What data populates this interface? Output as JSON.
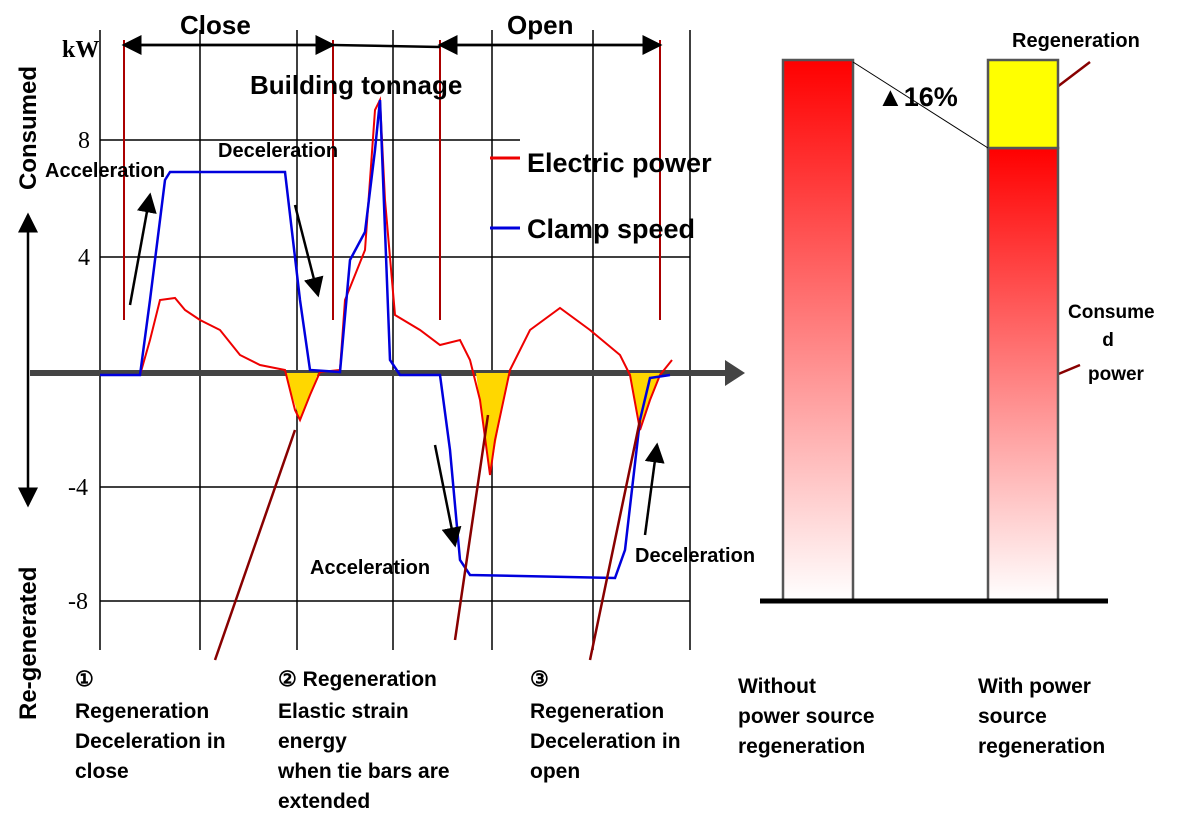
{
  "axis": {
    "unit": "kW",
    "ticks": [
      "8",
      "4",
      "-4",
      "-8"
    ],
    "top_label": "Consumed",
    "bottom_label": "Re-generated"
  },
  "phases": {
    "close": "Close",
    "open": "Open",
    "tonnage": "Building tonnage"
  },
  "legend": {
    "power": "Electric power",
    "speed": "Clamp speed"
  },
  "annotations": [
    "Acceleration",
    "Deceleration",
    "Acceleration",
    "Deceleration"
  ],
  "notes": [
    [
      "①",
      "Regeneration",
      "Deceleration in",
      "close"
    ],
    [
      "② Regeneration",
      "Elastic strain",
      "energy",
      "when tie bars are",
      "extended"
    ],
    [
      "③",
      "Regeneration",
      "Deceleration in",
      "open"
    ]
  ],
  "bars": {
    "change": "▲16%",
    "regeneration": "Regeneration",
    "consumed": [
      "Consume",
      "d",
      "power"
    ],
    "without": [
      "Without",
      "power source",
      "regeneration"
    ],
    "with": [
      "With power",
      "source",
      "regeneration"
    ]
  }
}
